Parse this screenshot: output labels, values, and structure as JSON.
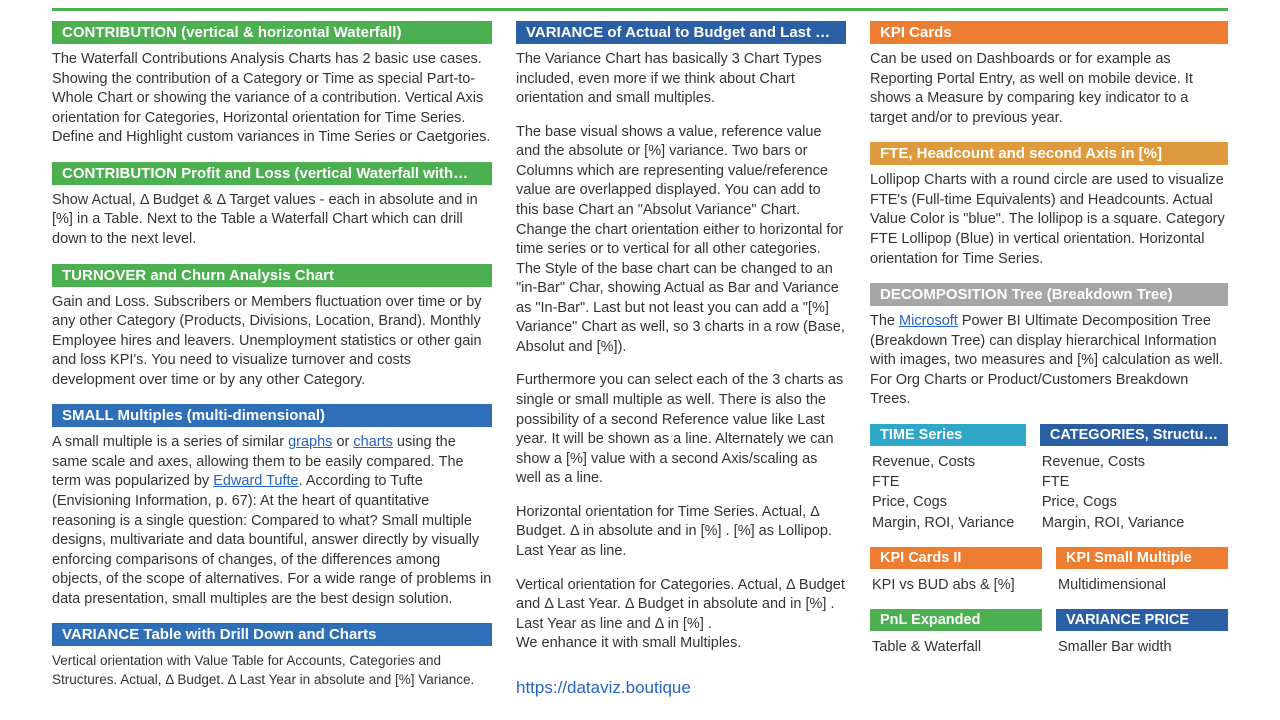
{
  "colors": {
    "green": "#4caf50",
    "blue": "#2f6fb7",
    "darkblue": "#2b5fa3",
    "orange": "#ed7d31",
    "amber": "#e09a3e",
    "teal": "#2ea7c9",
    "grey": "#a6a6a6"
  },
  "col1": {
    "contribution": {
      "title": "CONTRIBUTION (vertical  & horizontal Waterfall)",
      "body": "The Waterfall Contributions Analysis Charts has 2 basic use cases. Showing the contribution of a Category or Time as special Part-to-Whole Chart or showing the variance of a contribution. Vertical Axis orientation for Categories, Horizontal orientation for Time Series. Define and Highlight custom variances in Time Series or Caetgories."
    },
    "contributionPL": {
      "title": "CONTRIBUTION Profit and Loss (vertical Waterfall with…",
      "body": "Show Actual, Δ Budget & Δ Target  values - each in absolute and in [%] in a Table. Next to the Table a Waterfall Chart which can drill down to the next level."
    },
    "turnover": {
      "title": "TURNOVER and Churn Analysis Chart",
      "body": "Gain and Loss. Subscribers or Members fluctuation over time or by any other Category (Products, Divisions, Location, Brand). Monthly Employee hires and leavers. Unemployment statistics or other gain and loss KPI's. You need to visualize turnover and costs development over time or by any other Category."
    },
    "smallMultiples": {
      "title": "SMALL Multiples (multi-dimensional)",
      "body_pre": "A small multiple is a series of similar ",
      "link1": "graphs",
      "body_mid1": " or ",
      "link2": "charts",
      "body_mid2": " using the same scale and axes, allowing them to be easily compared. The term was popularized by ",
      "link3": "Edward Tufte",
      "body_post": ". According to Tufte (Envisioning Information, p. 67): At the heart of quantitative reasoning is a single question: Compared to what? Small multiple designs, multivariate and data bountiful, answer directly by visually enforcing comparisons of changes, of the differences among objects, of the scope of alternatives. For a wide range of problems in data presentation, small multiples are the best design solution."
    },
    "varianceTable": {
      "title": "VARIANCE Table with Drill Down and Charts",
      "body": "Vertical orientation with Value Table for Accounts, Categories and Structures. Actual, Δ Budget. Δ Last Year in absolute and [%] Variance."
    }
  },
  "col2": {
    "variance": {
      "title": "VARIANCE of Actual to Budget and Last …",
      "p1": "The Variance Chart has basically 3 Chart Types included, even more if we think about Chart orientation and small multiples.",
      "p2": "The base visual shows a value, reference value and the absolute or [%] variance. Two bars or Columns which are representing value/reference value are overlapped displayed. You can add to this base Chart an \"Absolut Variance\" Chart. Change the chart orientation either to horizontal for time series or to vertical for all other categories. The Style of the base chart can be changed to an \"in-Bar\" Char, showing Actual as Bar and Variance as \"In-Bar\". Last but not least you can add a \"[%] Variance\" Chart as well, so 3 charts in a row (Base, Absolut and [%]).",
      "p3": "Furthermore you can select each of the 3 charts as single or small multiple as well. There is also the possibility of a second Reference value like Last year. It will be shown as a line. Alternately we can show a [%]  value with a second Axis/scaling as well as a line.",
      "p4": "Horizontal orientation for Time Series. Actual, Δ Budget. Δ in absolute and in [%] . [%] as Lollipop. Last Year as line.",
      "p5": "Vertical orientation for Categories. Actual, Δ Budget and Δ Last Year. Δ Budget in absolute and in [%] . Last Year as line and Δ in [%] .\nWe enhance it with small Multiples.",
      "url": "https://dataviz.boutique"
    }
  },
  "col3": {
    "kpiCards": {
      "title": "KPI Cards",
      "body": "Can be used on Dashboards or for example as Reporting Portal Entry, as well on mobile device. It shows a Measure by comparing key indicator to a target and/or to previous year."
    },
    "fte": {
      "title": "FTE, Headcount and second Axis in [%]",
      "body": "Lollipop Charts with a round circle are used to visualize FTE's (Full-time Equivalents) and Headcounts. Actual Value Color is \"blue\". The lollipop is a square. Category FTE Lollipop (Blue) in vertical orientation. Horizontal orientation for Time Series."
    },
    "decomp": {
      "title": "DECOMPOSITION Tree (Breakdown Tree)",
      "body_pre": "The ",
      "link": "Microsoft",
      "body_post": "  Power BI Ultimate Decomposition Tree (Breakdown Tree) can display hierarchical Information with images, two measures and [%] calculation as well. For Org Charts or Product/Customers Breakdown Trees."
    },
    "timeSeries": {
      "title": "TIME Series",
      "l1": "Revenue, Costs",
      "l2": "FTE",
      "l3": "Price, Cogs",
      "l4": "Margin, ROI, Variance"
    },
    "categories": {
      "title": "CATEGORIES, Structu…",
      "l1": "Revenue, Costs",
      "l2": "FTE",
      "l3": "Price, Cogs",
      "l4": "Margin, ROI, Variance"
    },
    "kpiCards2": {
      "title": "KPI Cards II",
      "body": "KPI vs BUD abs & [%]"
    },
    "kpiSmall": {
      "title": "KPI Small Multiple",
      "body": "Multidimensional"
    },
    "pnl": {
      "title": "PnL Expanded",
      "body": "Table & Waterfall"
    },
    "varPrice": {
      "title": "VARIANCE PRICE",
      "body": "Smaller Bar width"
    }
  }
}
